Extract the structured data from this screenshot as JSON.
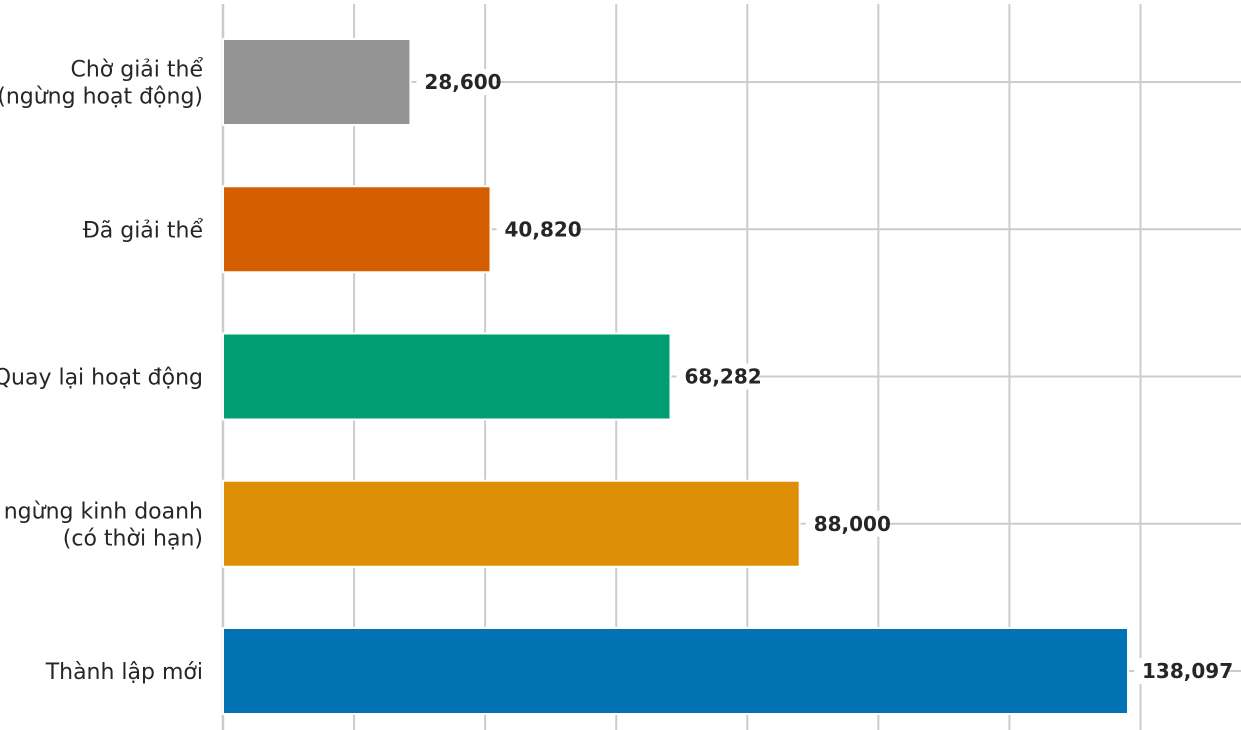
{
  "chart_data": {
    "type": "bar",
    "orientation": "horizontal",
    "categories": [
      [
        "Thành lập mới"
      ],
      [
        "Tạm ngừng kinh doanh",
        "(có thời hạn)"
      ],
      [
        "Quay lại hoạt động"
      ],
      [
        "Đã giải thể"
      ],
      [
        "Chờ giải thể",
        "(ngừng hoạt động)"
      ]
    ],
    "values": [
      138097,
      88000,
      68282,
      40820,
      28600
    ],
    "value_labels": [
      "138,097",
      "88,000",
      "68,282",
      "40,820",
      "28,600"
    ],
    "colors": [
      "#0173b2",
      "#de8f05",
      "#029e73",
      "#d55e00",
      "#949494"
    ],
    "xlim": [
      0,
      155000
    ],
    "grid": true,
    "title": "",
    "xlabel": "",
    "ylabel": ""
  }
}
